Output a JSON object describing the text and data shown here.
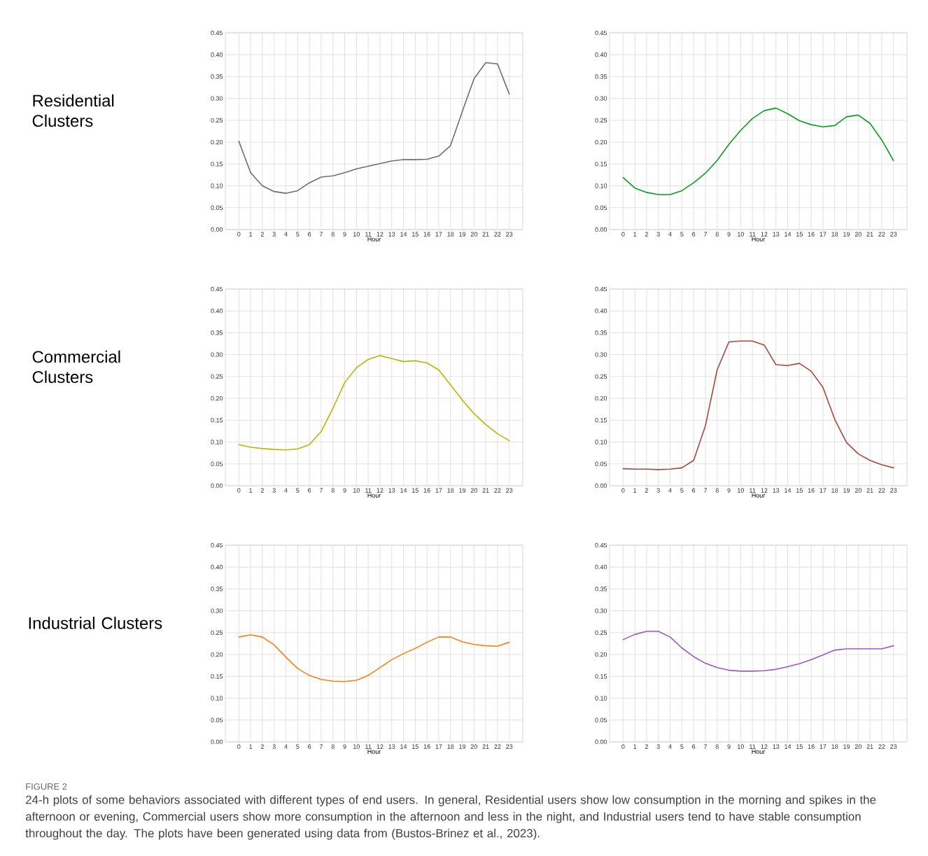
{
  "chart_data": [
    {
      "type": "line",
      "xlabel": "Hour",
      "annotations": [
        "Residential Clusters"
      ],
      "color": "#6e6e6e",
      "grid": true,
      "x": [
        0,
        1,
        2,
        3,
        4,
        5,
        6,
        7,
        8,
        9,
        10,
        11,
        12,
        13,
        14,
        15,
        16,
        17,
        18,
        19,
        20,
        21,
        22,
        23
      ],
      "values": [
        0.202,
        0.13,
        0.1,
        0.087,
        0.083,
        0.089,
        0.107,
        0.12,
        0.123,
        0.13,
        0.139,
        0.145,
        0.151,
        0.157,
        0.16,
        0.16,
        0.161,
        0.168,
        0.192,
        0.27,
        0.345,
        0.382,
        0.379,
        0.31
      ],
      "xlim": [
        -1.15,
        24.15
      ],
      "ylim": [
        0,
        0.45
      ],
      "xticks": [
        0,
        1,
        2,
        3,
        4,
        5,
        6,
        7,
        8,
        9,
        10,
        11,
        12,
        13,
        14,
        15,
        16,
        17,
        18,
        19,
        20,
        21,
        22,
        23
      ],
      "yticks": [
        {
          "value": 0,
          "label": "0.00"
        },
        {
          "value": 0.05,
          "label": "0.05"
        },
        {
          "value": 0.1,
          "label": "0.10"
        },
        {
          "value": 0.15,
          "label": "0.15"
        },
        {
          "value": 0.2,
          "label": "0.20"
        },
        {
          "value": 0.25,
          "label": "0.25"
        },
        {
          "value": 0.3,
          "label": "0.30"
        },
        {
          "value": 0.35,
          "label": "0.35"
        },
        {
          "value": 0.4,
          "label": "0.40"
        },
        {
          "value": 0.45,
          "label": "0.45"
        }
      ]
    },
    {
      "type": "line",
      "xlabel": "Hour",
      "color": "#0a9e1e",
      "grid": true,
      "x": [
        0,
        1,
        2,
        3,
        4,
        5,
        6,
        7,
        8,
        9,
        10,
        11,
        12,
        13,
        14,
        15,
        16,
        17,
        18,
        19,
        20,
        21,
        22,
        23
      ],
      "values": [
        0.119,
        0.095,
        0.085,
        0.08,
        0.08,
        0.089,
        0.107,
        0.129,
        0.158,
        0.195,
        0.227,
        0.254,
        0.272,
        0.278,
        0.265,
        0.249,
        0.24,
        0.235,
        0.238,
        0.258,
        0.262,
        0.243,
        0.205,
        0.158
      ],
      "xlim": [
        -1.15,
        24.15
      ],
      "ylim": [
        0,
        0.45
      ],
      "xticks": [
        0,
        1,
        2,
        3,
        4,
        5,
        6,
        7,
        8,
        9,
        10,
        11,
        12,
        13,
        14,
        15,
        16,
        17,
        18,
        19,
        20,
        21,
        22,
        23
      ],
      "yticks": [
        {
          "value": 0,
          "label": "0.00"
        },
        {
          "value": 0.05,
          "label": "0.05"
        },
        {
          "value": 0.1,
          "label": "0.10"
        },
        {
          "value": 0.15,
          "label": "0.15"
        },
        {
          "value": 0.2,
          "label": "0.20"
        },
        {
          "value": 0.25,
          "label": "0.25"
        },
        {
          "value": 0.3,
          "label": "0.30"
        },
        {
          "value": 0.35,
          "label": "0.35"
        },
        {
          "value": 0.4,
          "label": "0.40"
        },
        {
          "value": 0.45,
          "label": "0.45"
        }
      ]
    },
    {
      "type": "line",
      "xlabel": "Hour",
      "annotations": [
        "Commercial Clusters"
      ],
      "color": "#b5b800",
      "grid": true,
      "x": [
        0,
        1,
        2,
        3,
        4,
        5,
        6,
        7,
        8,
        9,
        10,
        11,
        12,
        13,
        14,
        15,
        16,
        17,
        18,
        19,
        20,
        21,
        22,
        23
      ],
      "values": [
        0.094,
        0.088,
        0.085,
        0.083,
        0.082,
        0.084,
        0.094,
        0.124,
        0.177,
        0.236,
        0.27,
        0.289,
        0.298,
        0.291,
        0.284,
        0.286,
        0.281,
        0.265,
        0.231,
        0.196,
        0.165,
        0.14,
        0.119,
        0.103
      ],
      "xlim": [
        -1.15,
        24.15
      ],
      "ylim": [
        0,
        0.45
      ],
      "xticks": [
        0,
        1,
        2,
        3,
        4,
        5,
        6,
        7,
        8,
        9,
        10,
        11,
        12,
        13,
        14,
        15,
        16,
        17,
        18,
        19,
        20,
        21,
        22,
        23
      ],
      "yticks": [
        {
          "value": 0,
          "label": "0.00"
        },
        {
          "value": 0.05,
          "label": "0.05"
        },
        {
          "value": 0.1,
          "label": "0.10"
        },
        {
          "value": 0.15,
          "label": "0.15"
        },
        {
          "value": 0.2,
          "label": "0.20"
        },
        {
          "value": 0.25,
          "label": "0.25"
        },
        {
          "value": 0.3,
          "label": "0.30"
        },
        {
          "value": 0.35,
          "label": "0.35"
        },
        {
          "value": 0.4,
          "label": "0.40"
        },
        {
          "value": 0.45,
          "label": "0.45"
        }
      ]
    },
    {
      "type": "line",
      "xlabel": "Hour",
      "color": "#a8473a",
      "grid": true,
      "x": [
        0,
        1,
        2,
        3,
        4,
        5,
        6,
        7,
        8,
        9,
        10,
        11,
        12,
        13,
        14,
        15,
        16,
        17,
        18,
        19,
        20,
        21,
        22,
        23
      ],
      "values": [
        0.039,
        0.038,
        0.038,
        0.037,
        0.038,
        0.041,
        0.058,
        0.137,
        0.265,
        0.329,
        0.331,
        0.331,
        0.322,
        0.277,
        0.275,
        0.28,
        0.262,
        0.225,
        0.152,
        0.099,
        0.073,
        0.058,
        0.048,
        0.041
      ],
      "xlim": [
        -1.15,
        24.15
      ],
      "ylim": [
        0,
        0.45
      ],
      "xticks": [
        0,
        1,
        2,
        3,
        4,
        5,
        6,
        7,
        8,
        9,
        10,
        11,
        12,
        13,
        14,
        15,
        16,
        17,
        18,
        19,
        20,
        21,
        22,
        23
      ],
      "yticks": [
        {
          "value": 0,
          "label": "0.00"
        },
        {
          "value": 0.05,
          "label": "0.05"
        },
        {
          "value": 0.1,
          "label": "0.10"
        },
        {
          "value": 0.15,
          "label": "0.15"
        },
        {
          "value": 0.2,
          "label": "0.20"
        },
        {
          "value": 0.25,
          "label": "0.25"
        },
        {
          "value": 0.3,
          "label": "0.30"
        },
        {
          "value": 0.35,
          "label": "0.35"
        },
        {
          "value": 0.4,
          "label": "0.40"
        },
        {
          "value": 0.45,
          "label": "0.45"
        }
      ]
    },
    {
      "type": "line",
      "xlabel": "Hour",
      "annotations": [
        "Industrial Clusters",
        "FIGURE 2",
        "24-h plots of some behaviors associated with different types of end users. In general, Residential users show low consumption in the morning and spikes in the afternoon or evening, Commercial users show more consumption in the afternoon and less in the night, and Industrial users tend to have stable consumption throughout the day. The plots have been generated using data from (Bustos-Brinez et al., 2023)."
      ],
      "color": "#ff7f0e",
      "grid": true,
      "x": [
        0,
        1,
        2,
        3,
        4,
        5,
        6,
        7,
        8,
        9,
        10,
        11,
        12,
        13,
        14,
        15,
        16,
        17,
        18,
        19,
        20,
        21,
        22,
        23
      ],
      "values": [
        0.24,
        0.245,
        0.24,
        0.222,
        0.194,
        0.168,
        0.152,
        0.143,
        0.139,
        0.138,
        0.141,
        0.152,
        0.17,
        0.188,
        0.202,
        0.214,
        0.228,
        0.24,
        0.24,
        0.229,
        0.223,
        0.22,
        0.219,
        0.228
      ],
      "xlim": [
        -1.15,
        24.15
      ],
      "ylim": [
        0,
        0.45
      ],
      "xticks": [
        0,
        1,
        2,
        3,
        4,
        5,
        6,
        7,
        8,
        9,
        10,
        11,
        12,
        13,
        14,
        15,
        16,
        17,
        18,
        19,
        20,
        21,
        22,
        23
      ],
      "yticks": [
        {
          "value": 0,
          "label": "0.00"
        },
        {
          "value": 0.05,
          "label": "0.05"
        },
        {
          "value": 0.1,
          "label": "0.10"
        },
        {
          "value": 0.15,
          "label": "0.15"
        },
        {
          "value": 0.2,
          "label": "0.20"
        },
        {
          "value": 0.25,
          "label": "0.25"
        },
        {
          "value": 0.3,
          "label": "0.30"
        },
        {
          "value": 0.35,
          "label": "0.35"
        },
        {
          "value": 0.4,
          "label": "0.40"
        },
        {
          "value": 0.45,
          "label": "0.45"
        }
      ]
    },
    {
      "type": "line",
      "xlabel": "Hour",
      "color": "#9b59c6",
      "grid": true,
      "x": [
        0,
        1,
        2,
        3,
        4,
        5,
        6,
        7,
        8,
        9,
        10,
        11,
        12,
        13,
        14,
        15,
        16,
        17,
        18,
        19,
        20,
        21,
        22,
        23
      ],
      "values": [
        0.234,
        0.246,
        0.253,
        0.253,
        0.24,
        0.215,
        0.195,
        0.18,
        0.17,
        0.164,
        0.162,
        0.162,
        0.163,
        0.166,
        0.172,
        0.179,
        0.188,
        0.199,
        0.21,
        0.213,
        0.213,
        0.213,
        0.213,
        0.22
      ],
      "xlim": [
        -1.15,
        24.15
      ],
      "ylim": [
        0,
        0.45
      ],
      "xticks": [
        0,
        1,
        2,
        3,
        4,
        5,
        6,
        7,
        8,
        9,
        10,
        11,
        12,
        13,
        14,
        15,
        16,
        17,
        18,
        19,
        20,
        21,
        22,
        23
      ],
      "yticks": [
        {
          "value": 0,
          "label": "0.00"
        },
        {
          "value": 0.05,
          "label": "0.05"
        },
        {
          "value": 0.1,
          "label": "0.10"
        },
        {
          "value": 0.15,
          "label": "0.15"
        },
        {
          "value": 0.2,
          "label": "0.20"
        },
        {
          "value": 0.25,
          "label": "0.25"
        },
        {
          "value": 0.3,
          "label": "0.30"
        },
        {
          "value": 0.35,
          "label": "0.35"
        },
        {
          "value": 0.4,
          "label": "0.40"
        },
        {
          "value": 0.45,
          "label": "0.45"
        }
      ]
    }
  ]
}
